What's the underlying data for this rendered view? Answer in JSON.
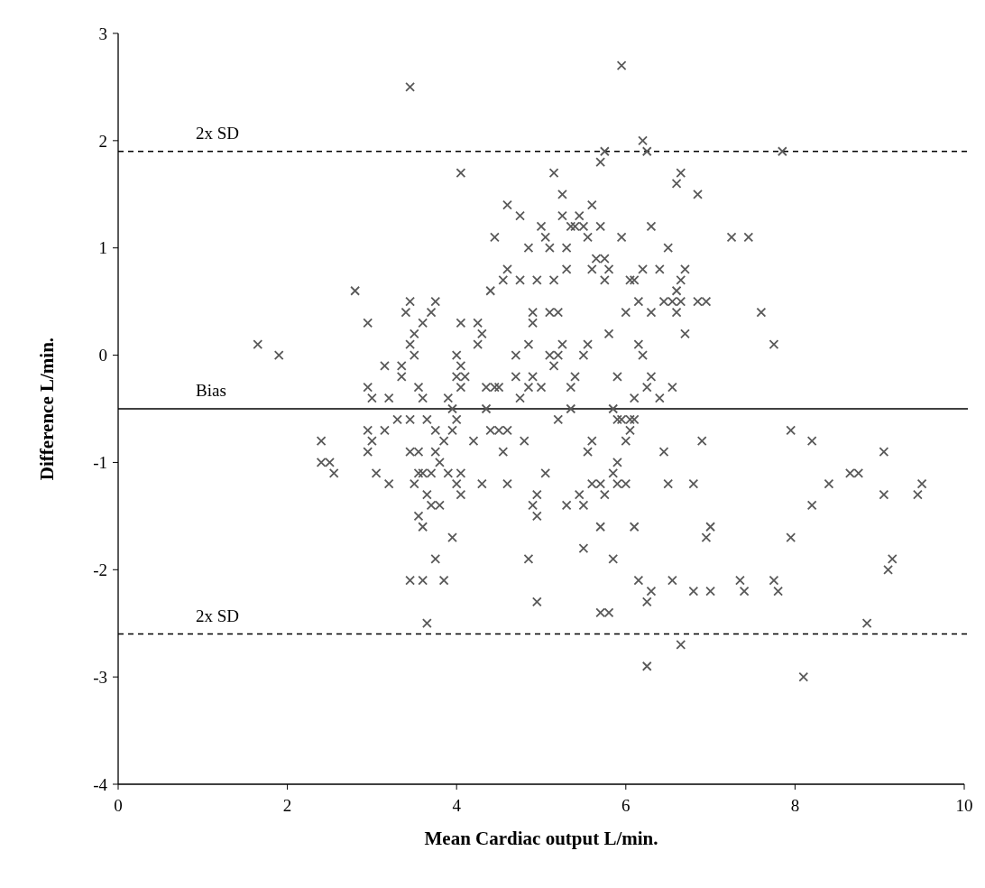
{
  "chart_data": {
    "type": "scatter",
    "xlabel": "Mean Cardiac output L/min.",
    "ylabel": "Difference L/min.",
    "xlim": [
      0,
      10
    ],
    "ylim": [
      -4,
      3
    ],
    "xticks": [
      0,
      2,
      4,
      6,
      8,
      10
    ],
    "yticks": [
      -4,
      -3,
      -2,
      -1,
      0,
      1,
      2,
      3
    ],
    "marker": "cross",
    "ref_lines": [
      {
        "axis": "y",
        "value": 1.9,
        "label": "2x SD",
        "line_style": "dashed",
        "color": "#000000"
      },
      {
        "axis": "y",
        "value": -0.5,
        "label": "Bias",
        "line_style": "solid",
        "color": "#000000"
      },
      {
        "axis": "y",
        "value": -2.6,
        "label": "2x SD",
        "line_style": "dashed",
        "color": "#000000"
      }
    ],
    "series": [
      {
        "color": "#595959",
        "x": [
          1.65,
          1.9,
          2.4,
          2.4,
          2.5,
          2.55,
          2.8,
          2.95,
          2.95,
          2.95,
          2.95,
          3.0,
          3.0,
          3.05,
          3.15,
          3.15,
          3.2,
          3.2,
          3.3,
          3.35,
          3.35,
          3.4,
          3.45,
          3.45,
          3.45,
          3.45,
          3.45,
          3.45,
          3.5,
          3.5,
          3.5,
          3.55,
          3.55,
          3.55,
          3.55,
          3.6,
          3.6,
          3.6,
          3.6,
          3.6,
          3.65,
          3.65,
          3.65,
          3.7,
          3.7,
          3.7,
          3.75,
          3.75,
          3.75,
          3.75,
          3.8,
          3.8,
          3.85,
          3.85,
          3.9,
          3.9,
          3.95,
          3.95,
          3.95,
          4.0,
          4.0,
          4.0,
          4.0,
          4.05,
          4.05,
          4.05,
          4.05,
          4.05,
          4.05,
          4.1,
          4.2,
          4.25,
          4.25,
          4.3,
          4.3,
          4.35,
          4.35,
          4.4,
          4.4,
          4.45,
          4.45,
          4.5,
          4.5,
          4.55,
          4.55,
          4.6,
          4.6,
          4.6,
          4.6,
          4.7,
          4.7,
          4.75,
          4.75,
          4.75,
          4.8,
          4.85,
          4.85,
          4.85,
          4.85,
          4.9,
          4.9,
          4.9,
          4.9,
          4.95,
          4.95,
          4.95,
          4.95,
          5.0,
          5.0,
          5.05,
          5.05,
          5.1,
          5.1,
          5.1,
          5.15,
          5.15,
          5.15,
          5.2,
          5.2,
          5.2,
          5.25,
          5.25,
          5.25,
          5.3,
          5.3,
          5.3,
          5.35,
          5.35,
          5.35,
          5.4,
          5.4,
          5.45,
          5.45,
          5.5,
          5.5,
          5.5,
          5.5,
          5.55,
          5.55,
          5.55,
          5.6,
          5.6,
          5.6,
          5.6,
          5.65,
          5.7,
          5.7,
          5.7,
          5.7,
          5.7,
          5.75,
          5.75,
          5.75,
          5.75,
          5.8,
          5.8,
          5.8,
          5.85,
          5.85,
          5.85,
          5.9,
          5.9,
          5.9,
          5.9,
          5.95,
          5.95,
          5.95,
          6.0,
          6.0,
          6.0,
          6.05,
          6.05,
          6.05,
          6.1,
          6.1,
          6.1,
          6.1,
          6.15,
          6.15,
          6.15,
          6.2,
          6.2,
          6.2,
          6.25,
          6.25,
          6.25,
          6.25,
          6.3,
          6.3,
          6.3,
          6.3,
          6.4,
          6.4,
          6.45,
          6.45,
          6.5,
          6.5,
          6.55,
          6.55,
          6.55,
          6.6,
          6.6,
          6.6,
          6.65,
          6.65,
          6.65,
          6.65,
          6.7,
          6.7,
          6.8,
          6.8,
          6.85,
          6.85,
          6.9,
          6.95,
          6.95,
          7.0,
          7.0,
          7.25,
          7.35,
          7.4,
          7.45,
          7.6,
          7.75,
          7.75,
          7.8,
          7.85,
          7.95,
          7.95,
          8.1,
          8.2,
          8.2,
          8.4,
          8.65,
          8.75,
          8.85,
          9.05,
          9.05,
          9.1,
          9.15,
          9.45,
          9.5
        ],
        "values": [
          0.1,
          0,
          -0.8,
          -1.0,
          -1.0,
          -1.1,
          0.6,
          0.3,
          -0.3,
          -0.7,
          -0.9,
          -0.4,
          -0.8,
          -1.1,
          -0.1,
          -0.7,
          -0.4,
          -1.2,
          -0.6,
          -0.1,
          -0.2,
          0.4,
          0.5,
          0.1,
          -0.6,
          -0.9,
          -2.1,
          2.5,
          0.2,
          0,
          -1.2,
          -0.3,
          -0.9,
          -1.1,
          -1.5,
          0.3,
          -0.4,
          -1.1,
          -1.6,
          -2.1,
          -0.6,
          -1.3,
          -2.5,
          0.4,
          -1.1,
          -1.4,
          0.5,
          -0.7,
          -0.9,
          -1.9,
          -1.0,
          -1.4,
          -0.8,
          -2.1,
          -0.4,
          -1.1,
          -0.7,
          -1.7,
          -0.5,
          0,
          -0.2,
          -0.6,
          -1.2,
          0.3,
          1.7,
          -0.1,
          -0.3,
          -1.1,
          -1.3,
          -0.2,
          -0.8,
          0.3,
          0.1,
          0.2,
          -1.2,
          -0.3,
          -0.5,
          0.6,
          -0.7,
          1.1,
          -0.3,
          -0.3,
          -0.7,
          -0.9,
          0.7,
          1.4,
          0.8,
          -0.7,
          -1.2,
          0,
          -0.2,
          1.3,
          0.7,
          -0.4,
          -0.8,
          1.0,
          -1.9,
          0.1,
          -0.3,
          0.4,
          0.3,
          -0.2,
          -1.4,
          0.7,
          -1.3,
          -1.5,
          -2.3,
          1.2,
          -0.3,
          1.1,
          -1.1,
          1.0,
          0.4,
          0,
          1.7,
          0.7,
          -0.1,
          0.4,
          0,
          -0.6,
          1.3,
          1.5,
          0.1,
          1.0,
          0.8,
          -1.4,
          1.2,
          -0.3,
          -0.5,
          1.2,
          -0.2,
          1.3,
          -1.3,
          1.2,
          0,
          -1.4,
          -1.8,
          1.1,
          0.1,
          -0.9,
          1.4,
          0.8,
          -0.8,
          -1.2,
          0.9,
          1.2,
          1.8,
          -1.2,
          -1.6,
          -2.4,
          1.9,
          0.9,
          0.7,
          -1.3,
          0.8,
          0.2,
          -2.4,
          -0.5,
          -1.1,
          -1.9,
          -0.2,
          -0.6,
          -1.0,
          -1.2,
          2.7,
          1.1,
          -0.6,
          0.4,
          -0.8,
          -1.2,
          0.7,
          -0.6,
          -0.7,
          0.7,
          -0.4,
          -0.6,
          -1.6,
          0.5,
          0.1,
          -2.1,
          2.0,
          0.8,
          0,
          1.9,
          -0.3,
          -2.3,
          -2.9,
          1.2,
          0.4,
          -0.2,
          -2.2,
          0.8,
          -0.4,
          0.5,
          -0.9,
          1.0,
          -1.2,
          0.5,
          -0.3,
          -2.1,
          1.6,
          0.6,
          0.4,
          1.7,
          0.7,
          0.5,
          -2.7,
          0.8,
          0.2,
          -1.2,
          -2.2,
          1.5,
          0.5,
          -0.8,
          0.5,
          -1.7,
          -1.6,
          -2.2,
          1.1,
          -2.1,
          -2.2,
          1.1,
          0.4,
          0.1,
          -2.1,
          -2.2,
          1.9,
          -0.7,
          -1.7,
          -3.0,
          -0.8,
          -1.4,
          -1.2,
          -1.1,
          -1.1,
          -2.5,
          -0.9,
          -1.3,
          -2.0,
          -1.9,
          -1.3,
          -1.2
        ]
      }
    ]
  }
}
